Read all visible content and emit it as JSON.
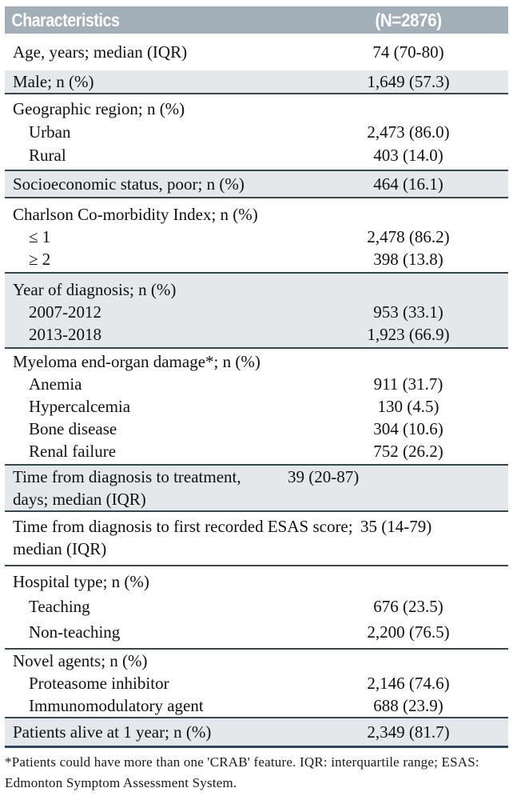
{
  "header": {
    "title": "Characteristics",
    "count": "(N=2876)"
  },
  "colors": {
    "header_bg": "#a2aeb8",
    "row_alt_bg": "#e4e8ea",
    "divider": "#37474f",
    "bottom_rule": "#2c4562"
  },
  "rows": {
    "age": {
      "label": "Age, years; median (IQR)",
      "value": "74 (70-80)"
    },
    "male": {
      "label": "Male; n (%)",
      "value": "1,649 (57.3)"
    },
    "geo_header": {
      "label": "Geographic region; n (%)"
    },
    "urban": {
      "label": "Urban",
      "value": "2,473 (86.0)"
    },
    "rural": {
      "label": "Rural",
      "value": "403 (14.0)"
    },
    "ses": {
      "label": "Socioeconomic status, poor; n (%)",
      "value": "464 (16.1)"
    },
    "charlson_header": {
      "label": "Charlson Co-morbidity Index; n (%)"
    },
    "charlson_le1": {
      "label": "≤ 1",
      "value": "2,478 (86.2)"
    },
    "charlson_ge2": {
      "label": "≥ 2",
      "value": "398 (13.8)"
    },
    "year_header": {
      "label": "Year of diagnosis; n (%)"
    },
    "year_2007_2012": {
      "label": "2007-2012",
      "value": "953 (33.1)"
    },
    "year_2013_2018": {
      "label": "2013-2018",
      "value": "1,923 (66.9)"
    },
    "crab_header": {
      "label": "Myeloma end-organ damage*; n (%)"
    },
    "anemia": {
      "label": "Anemia",
      "value": "911 (31.7)"
    },
    "hypercalcemia": {
      "label": "Hypercalcemia",
      "value": "130 (4.5)"
    },
    "bone_disease": {
      "label": "Bone disease",
      "value": "304 (10.6)"
    },
    "renal_failure": {
      "label": "Renal failure",
      "value": "752 (26.2)"
    },
    "tx_time": {
      "label": "Time from diagnosis to treatment, days; median (IQR)",
      "value": "39 (20-87)"
    },
    "esas_time": {
      "label": "Time from diagnosis to first recorded ESAS score; median (IQR)",
      "value": "35 (14-79)"
    },
    "hospital_header": {
      "label": "Hospital type; n (%)"
    },
    "teaching": {
      "label": "Teaching",
      "value": "676 (23.5)"
    },
    "non_teaching": {
      "label": "Non-teaching",
      "value": "2,200 (76.5)"
    },
    "novel_header": {
      "label": "Novel agents; n (%)"
    },
    "proteasome": {
      "label": "Proteasome inhibitor",
      "value": "2,146 (74.6)"
    },
    "immunomodulatory": {
      "label": "Immunomodulatory agent",
      "value": "688 (23.9)"
    },
    "alive_1yr": {
      "label": "Patients alive at 1 year; n (%)",
      "value": "2,349 (81.7)"
    }
  },
  "footnote": "*Patients could have more than one 'CRAB' feature. IQR: interquartile range; ESAS: Edmonton Symptom Assessment System."
}
